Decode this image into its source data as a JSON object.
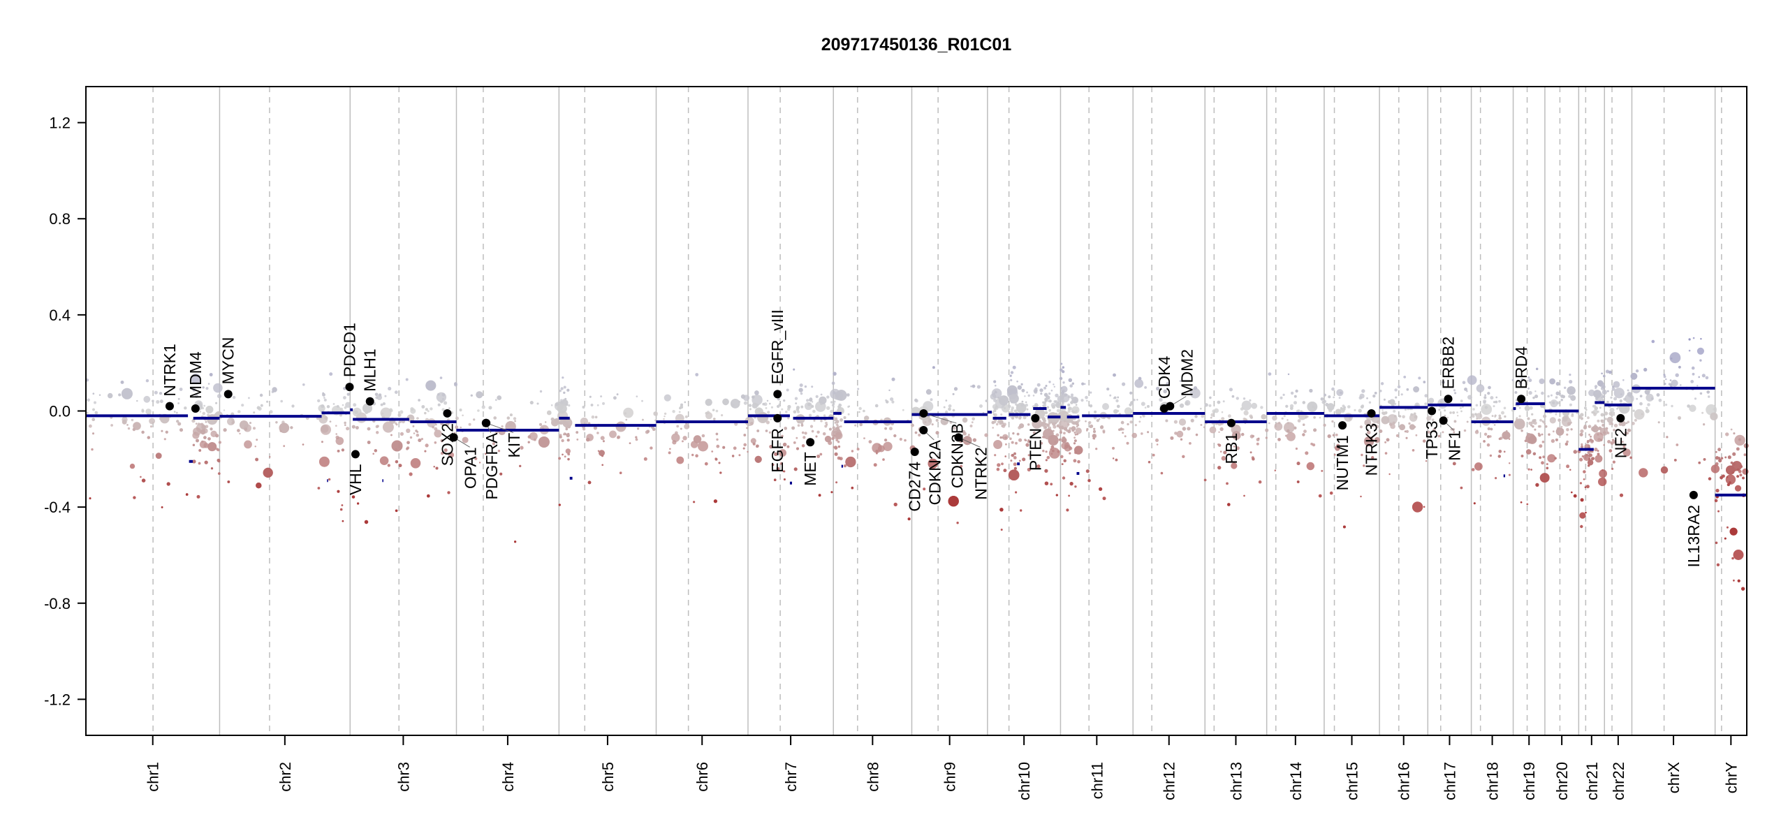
{
  "chart_data": {
    "type": "scatter",
    "title": "209717450136_R01C01",
    "xlabel": "",
    "ylabel": "",
    "ylim": [
      -1.35,
      1.35
    ],
    "grid": false,
    "yticks": [
      1.2,
      0.8,
      0.4,
      0.0,
      -0.4,
      -0.8,
      -1.2
    ],
    "ytick_labels": [
      "1.2",
      "0.8",
      "0.4",
      "0.0",
      "-0.4",
      "-0.8",
      "-1.2"
    ],
    "chromosomes": [
      {
        "name": "chr1",
        "length": 249,
        "centromere": 125
      },
      {
        "name": "chr2",
        "length": 243,
        "centromere": 93
      },
      {
        "name": "chr3",
        "length": 198,
        "centromere": 91
      },
      {
        "name": "chr4",
        "length": 191,
        "centromere": 50
      },
      {
        "name": "chr5",
        "length": 181,
        "centromere": 48
      },
      {
        "name": "chr6",
        "length": 171,
        "centromere": 60
      },
      {
        "name": "chr7",
        "length": 159,
        "centromere": 60
      },
      {
        "name": "chr8",
        "length": 146,
        "centromere": 45
      },
      {
        "name": "chr9",
        "length": 141,
        "centromere": 49
      },
      {
        "name": "chr10",
        "length": 136,
        "centromere": 40
      },
      {
        "name": "chr11",
        "length": 135,
        "centromere": 53
      },
      {
        "name": "chr12",
        "length": 134,
        "centromere": 35
      },
      {
        "name": "chr13",
        "length": 115,
        "centromere": 17
      },
      {
        "name": "chr14",
        "length": 107,
        "centromere": 17
      },
      {
        "name": "chr15",
        "length": 103,
        "centromere": 19
      },
      {
        "name": "chr16",
        "length": 90,
        "centromere": 36
      },
      {
        "name": "chr17",
        "length": 81,
        "centromere": 24
      },
      {
        "name": "chr18",
        "length": 78,
        "centromere": 17
      },
      {
        "name": "chr19",
        "length": 59,
        "centromere": 26
      },
      {
        "name": "chr20",
        "length": 63,
        "centromere": 28
      },
      {
        "name": "chr21",
        "length": 48,
        "centromere": 13
      },
      {
        "name": "chr22",
        "length": 51,
        "centromere": 14
      },
      {
        "name": "chrX",
        "length": 155,
        "centromere": 60
      },
      {
        "name": "chrY",
        "length": 59,
        "centromere": 12
      }
    ],
    "segments": [
      [
        "chr1",
        0,
        190,
        -0.02
      ],
      [
        "chr1",
        192,
        199,
        -0.21
      ],
      [
        "chr1",
        200,
        249,
        -0.03
      ],
      [
        "chr2",
        0,
        190,
        -0.022
      ],
      [
        "chr2",
        190,
        243,
        -0.008
      ],
      [
        "chr2",
        200,
        202,
        -0.29
      ],
      [
        "chr3",
        0,
        5,
        0.005
      ],
      [
        "chr3",
        5,
        110,
        -0.035
      ],
      [
        "chr3",
        112,
        198,
        -0.045
      ],
      [
        "chr3",
        60,
        62,
        -0.29
      ],
      [
        "chr4",
        0,
        191,
        -0.08
      ],
      [
        "chr5",
        0,
        20,
        -0.03
      ],
      [
        "chr5",
        20,
        25,
        -0.28
      ],
      [
        "chr5",
        30,
        181,
        -0.06
      ],
      [
        "chr6",
        0,
        171,
        -0.045
      ],
      [
        "chr7",
        0,
        78,
        -0.02
      ],
      [
        "chr7",
        78,
        82,
        -0.3
      ],
      [
        "chr7",
        84,
        159,
        -0.03
      ],
      [
        "chr8",
        0,
        15,
        -0.01
      ],
      [
        "chr8",
        15,
        18,
        -0.23
      ],
      [
        "chr8",
        20,
        146,
        -0.045
      ],
      [
        "chr9",
        0,
        141,
        -0.015
      ],
      [
        "chr10",
        0,
        8,
        -0.005
      ],
      [
        "chr10",
        10,
        35,
        -0.03
      ],
      [
        "chr10",
        40,
        80,
        -0.015
      ],
      [
        "chr10",
        85,
        110,
        0.01
      ],
      [
        "chr10",
        112,
        136,
        -0.025
      ],
      [
        "chr10",
        55,
        60,
        -0.22
      ],
      [
        "chr11",
        0,
        10,
        0.015
      ],
      [
        "chr11",
        12,
        35,
        -0.025
      ],
      [
        "chr11",
        40,
        135,
        -0.02
      ],
      [
        "chr11",
        30,
        35,
        -0.26
      ],
      [
        "chr12",
        0,
        134,
        -0.01
      ],
      [
        "chr13",
        0,
        115,
        -0.045
      ],
      [
        "chr14",
        0,
        107,
        -0.01
      ],
      [
        "chr15",
        0,
        103,
        -0.02
      ],
      [
        "chr16",
        0,
        90,
        0.015
      ],
      [
        "chr17",
        0,
        81,
        0.025
      ],
      [
        "chr18",
        0,
        78,
        -0.045
      ],
      [
        "chr18",
        60,
        63,
        -0.27
      ],
      [
        "chr19",
        0,
        5,
        0.01
      ],
      [
        "chr19",
        5,
        59,
        0.03
      ],
      [
        "chr20",
        0,
        63,
        0.0
      ],
      [
        "chr21",
        0,
        28,
        -0.16
      ],
      [
        "chr21",
        30,
        48,
        0.035
      ],
      [
        "chr22",
        0,
        51,
        0.025
      ],
      [
        "chrX",
        0,
        155,
        0.095
      ],
      [
        "chrY",
        0,
        59,
        -0.35
      ]
    ],
    "genes": [
      {
        "name": "NTRK1",
        "chr": "chr1",
        "pos": 156,
        "value": 0.02,
        "label": "up"
      },
      {
        "name": "MDM4",
        "chr": "chr1",
        "pos": 204,
        "value": 0.01,
        "label": "up"
      },
      {
        "name": "MYCN",
        "chr": "chr2",
        "pos": 16,
        "value": 0.07,
        "label": "up"
      },
      {
        "name": "PDCD1",
        "chr": "chr2",
        "pos": 242,
        "value": 0.1,
        "label": "up"
      },
      {
        "name": "VHL",
        "chr": "chr3",
        "pos": 10,
        "value": -0.18,
        "label": "down"
      },
      {
        "name": "MLH1",
        "chr": "chr3",
        "pos": 37,
        "value": 0.04,
        "label": "up"
      },
      {
        "name": "SOX2",
        "chr": "chr3",
        "pos": 181,
        "value": -0.01,
        "label": "down"
      },
      {
        "name": "OPA1",
        "chr": "chr3",
        "pos": 193,
        "value": -0.11,
        "label": "down"
      },
      {
        "name": "PDGFRA",
        "chr": "chr4",
        "pos": 55,
        "value": -0.05,
        "label": "down"
      },
      {
        "name": "KIT",
        "chr": "chr4",
        "pos": 55.5,
        "value": -0.05,
        "label": "down"
      },
      {
        "name": "EGFR_vIII",
        "chr": "chr7",
        "pos": 55,
        "value": 0.07,
        "label": "up"
      },
      {
        "name": "EGFR",
        "chr": "chr7",
        "pos": 55,
        "value": -0.03,
        "label": "down"
      },
      {
        "name": "MET",
        "chr": "chr7",
        "pos": 116,
        "value": -0.13,
        "label": "down"
      },
      {
        "name": "CD274",
        "chr": "chr9",
        "pos": 5.5,
        "value": -0.17,
        "label": "down"
      },
      {
        "name": "CDKN2A",
        "chr": "chr9",
        "pos": 21.9,
        "value": -0.08,
        "label": "down"
      },
      {
        "name": "CDKN2B",
        "chr": "chr9",
        "pos": 22,
        "value": -0.01,
        "label": "down"
      },
      {
        "name": "NTRK2",
        "chr": "chr9",
        "pos": 87,
        "value": -0.11,
        "label": "down"
      },
      {
        "name": "PTEN",
        "chr": "chr10",
        "pos": 89,
        "value": -0.03,
        "label": "down"
      },
      {
        "name": "CDK4",
        "chr": "chr12",
        "pos": 58,
        "value": 0.01,
        "label": "up"
      },
      {
        "name": "MDM2",
        "chr": "chr12",
        "pos": 69,
        "value": 0.02,
        "label": "up"
      },
      {
        "name": "RB1",
        "chr": "chr13",
        "pos": 49,
        "value": -0.05,
        "label": "down"
      },
      {
        "name": "NUTM1",
        "chr": "chr15",
        "pos": 34,
        "value": -0.06,
        "label": "down"
      },
      {
        "name": "NTRK3",
        "chr": "chr15",
        "pos": 88,
        "value": -0.01,
        "label": "down"
      },
      {
        "name": "TP53",
        "chr": "chr17",
        "pos": 7.5,
        "value": 0.0,
        "label": "down"
      },
      {
        "name": "NF1",
        "chr": "chr17",
        "pos": 29,
        "value": -0.04,
        "label": "down"
      },
      {
        "name": "ERBB2",
        "chr": "chr17",
        "pos": 38,
        "value": 0.05,
        "label": "up"
      },
      {
        "name": "BRD4",
        "chr": "chr19",
        "pos": 15,
        "value": 0.05,
        "label": "up"
      },
      {
        "name": "NF2",
        "chr": "chr22",
        "pos": 30,
        "value": -0.03,
        "label": "down"
      },
      {
        "name": "IL13RA2",
        "chr": "chrX",
        "pos": 115,
        "value": -0.35,
        "label": "down"
      }
    ],
    "colors": {
      "segment": "#00008b",
      "gain": "#8c8cc0",
      "neutral": "#d0d0d0",
      "loss": "#a83232",
      "gene_point": "#000000",
      "boundary": "#bdbdbd"
    }
  }
}
